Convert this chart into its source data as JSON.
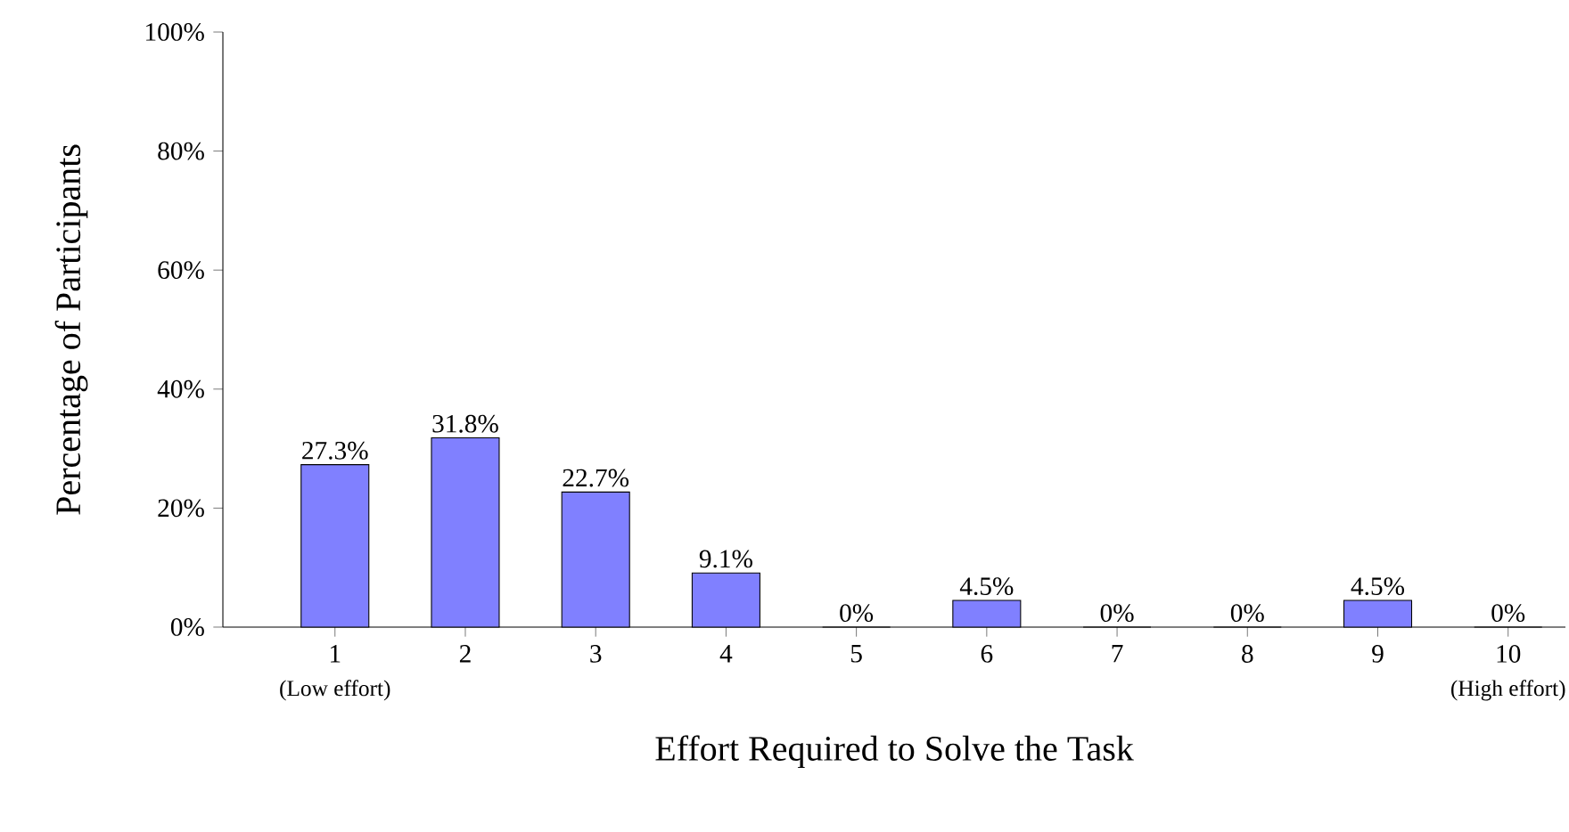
{
  "chart_data": {
    "type": "bar",
    "xlabel": "Effort Required to Solve the Task",
    "ylabel": "Percentage of Participants",
    "categories": [
      "1",
      "2",
      "3",
      "4",
      "5",
      "6",
      "7",
      "8",
      "9",
      "10"
    ],
    "values": [
      27.3,
      31.8,
      22.7,
      9.1,
      0,
      4.5,
      0,
      0,
      4.5,
      0
    ],
    "value_labels": [
      "27.3%",
      "31.8%",
      "22.7%",
      "9.1%",
      "0%",
      "4.5%",
      "0%",
      "0%",
      "4.5%",
      "0%"
    ],
    "color": "#8080ff",
    "ylim": [
      0,
      100
    ],
    "yticks": [
      {
        "value": 0,
        "label": "0%"
      },
      {
        "value": 20,
        "label": "20%"
      },
      {
        "value": 40,
        "label": "40%"
      },
      {
        "value": 60,
        "label": "60%"
      },
      {
        "value": 80,
        "label": "80%"
      },
      {
        "value": 100,
        "label": "100%"
      }
    ],
    "annotations": [
      "(Low effort)",
      "(High effort)"
    ],
    "grid": false
  }
}
